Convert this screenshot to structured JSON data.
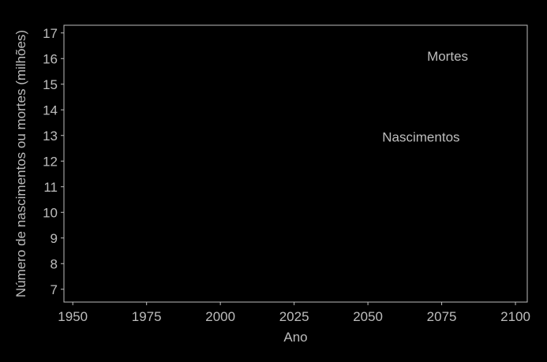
{
  "chart_data": {
    "type": "line",
    "title": "",
    "xlabel": "Ano",
    "ylabel": "Número de nascimentos ou mortes (milhões)",
    "xlim": [
      1947,
      2104
    ],
    "ylim": [
      6.5,
      17.3
    ],
    "x_ticks": [
      1950,
      1975,
      2000,
      2025,
      2050,
      2075,
      2100
    ],
    "y_ticks": [
      7,
      8,
      9,
      10,
      11,
      12,
      13,
      14,
      15,
      16,
      17
    ],
    "x_tick_labels": [
      "1950",
      "1975",
      "2000",
      "2025",
      "2050",
      "2075",
      "2100"
    ],
    "y_tick_labels": [
      "7",
      "8",
      "9",
      "10",
      "11",
      "12",
      "13",
      "14",
      "15",
      "16",
      "17"
    ],
    "grid": false,
    "series": [
      {
        "name": "Mortes",
        "x": [],
        "y": [],
        "label_at": {
          "x": 2077,
          "y": 16.1
        }
      },
      {
        "name": "Nascimentos",
        "x": [],
        "y": [],
        "label_at": {
          "x": 2068,
          "y": 12.95
        }
      }
    ],
    "colors": {
      "background": "#000000",
      "axes": "#bdbdbd",
      "text": "#bdbdbd"
    }
  }
}
